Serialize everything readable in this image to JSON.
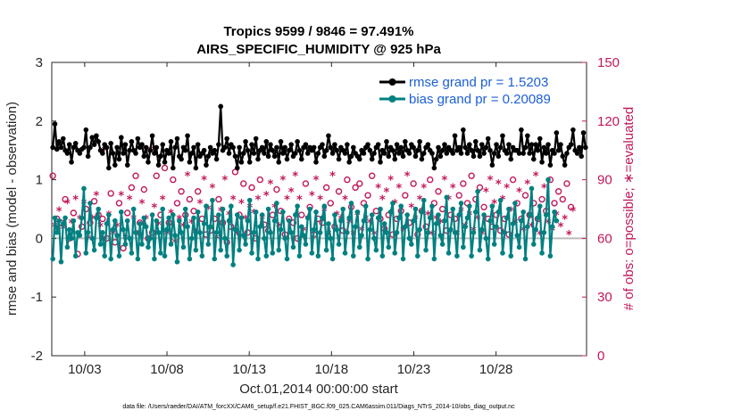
{
  "chart_data": {
    "type": "line",
    "title_line1": "Tropics 9599 / 9846 = 97.491%",
    "title_line2": "AIRS_SPECIFIC_HUMIDITY @ 925 hPa",
    "ylabel": "rmse and bias (model - observation)",
    "ylabel_right": "# of obs: o=possible; ∗=evaluated",
    "xlabel": "Oct.01,2014 00:00:00 start",
    "footer": "data file: /Users/raeder/DAI/ATM_forcXX/CAM6_setup/f.e21.FHIST_BGC.f09_025.CAM6assim.011/Diags_NTrS_2014-10/obs_diag_output.nc",
    "ylim": [
      -2,
      3
    ],
    "ylim_right": [
      0,
      150
    ],
    "xlim": [
      0,
      32.5
    ],
    "yticks": [
      "-2",
      "-1",
      "0",
      "1",
      "2",
      "3"
    ],
    "yticks_right": [
      "0",
      "30",
      "60",
      "90",
      "120",
      "150"
    ],
    "xticks": [
      {
        "day": 2,
        "label": "10/03"
      },
      {
        "day": 7,
        "label": "10/08"
      },
      {
        "day": 12,
        "label": "10/13"
      },
      {
        "day": 17,
        "label": "10/18"
      },
      {
        "day": 22,
        "label": "10/23"
      },
      {
        "day": 27,
        "label": "10/28"
      }
    ],
    "legend": {
      "placement": "top-right",
      "rmse_label": "rmse grand pr = 1.5203",
      "bias_label": "bias grand pr = 0.20089"
    },
    "series": [
      {
        "name": "rmse",
        "color": "#000000",
        "values": [
          1.55,
          1.95,
          1.52,
          1.65,
          1.55,
          1.7,
          1.5,
          1.45,
          1.6,
          1.3,
          1.55,
          1.62,
          1.5,
          1.45,
          1.52,
          1.55,
          1.85,
          1.4,
          1.55,
          1.72,
          1.6,
          1.75,
          1.65,
          1.5,
          1.45,
          1.6,
          1.55,
          1.2,
          1.62,
          1.45,
          1.25,
          1.55,
          1.35,
          1.72,
          1.45,
          1.6,
          1.25,
          1.5,
          1.65,
          1.5,
          1.45,
          1.7,
          1.55,
          1.6,
          1.4,
          1.55,
          1.3,
          1.5,
          1.75,
          1.45,
          1.55,
          1.25,
          1.4,
          1.6,
          1.3,
          1.5,
          1.45,
          1.65,
          1.2,
          1.55,
          1.7,
          1.4,
          1.35,
          1.55,
          1.5,
          1.75,
          1.3,
          1.45,
          1.55,
          1.2,
          1.6,
          1.4,
          1.45,
          1.5,
          1.25,
          1.4,
          1.55,
          1.45,
          1.5,
          1.35,
          1.6,
          2.25,
          1.5,
          1.55,
          1.7,
          1.45,
          1.6,
          1.55,
          1.4,
          1.2,
          1.55,
          1.3,
          1.45,
          1.65,
          1.5,
          1.3,
          1.6,
          1.45,
          1.7,
          1.35,
          1.5,
          1.55,
          1.45,
          1.65,
          1.4,
          1.6,
          1.5,
          1.4,
          1.55,
          1.3,
          1.65,
          1.45,
          1.55,
          1.35,
          1.5,
          1.6,
          1.4,
          1.45,
          1.65,
          1.5,
          1.35,
          1.55,
          1.6,
          1.45,
          1.55,
          1.5,
          1.55,
          1.3,
          1.45,
          1.55,
          1.6,
          1.4,
          1.5,
          1.75,
          1.55,
          1.45,
          1.6,
          1.5,
          1.35,
          1.55,
          1.5,
          1.45,
          1.6,
          1.3,
          1.4,
          1.55,
          1.45,
          1.4,
          1.35,
          1.5,
          1.45,
          1.55,
          1.6,
          1.5,
          1.35,
          1.45,
          1.55,
          1.6,
          1.3,
          1.5,
          1.45,
          1.65,
          1.4,
          1.55,
          1.5,
          1.35,
          1.6,
          1.45,
          1.55,
          1.4,
          1.65,
          1.5,
          1.45,
          1.6,
          1.55,
          1.4,
          1.5,
          1.65,
          1.35,
          1.45,
          1.55,
          1.6,
          1.5,
          1.45,
          1.2,
          1.35,
          1.55,
          1.4,
          1.5,
          1.6,
          1.45,
          1.55,
          1.5,
          1.45,
          1.75,
          1.5,
          1.55,
          1.45,
          1.85,
          1.55,
          1.45,
          1.6,
          1.5,
          1.4,
          1.65,
          1.5,
          1.4,
          1.6,
          1.45,
          1.55,
          1.7,
          1.5,
          1.25,
          1.45,
          1.6,
          1.4,
          1.55,
          1.75,
          1.5,
          1.45,
          1.6,
          1.35,
          1.55,
          1.5,
          1.5,
          1.45,
          1.85,
          1.45,
          1.55,
          1.75,
          1.45,
          1.6,
          1.35,
          1.6,
          1.5,
          1.7,
          1.3,
          1.55,
          1.45,
          1.6,
          1.25,
          1.5,
          1.45,
          1.8,
          1.5,
          1.6,
          1.4,
          1.25,
          1.45,
          1.55,
          1.6,
          1.85,
          1.5,
          1.45,
          1.55,
          1.4,
          1.8,
          1.55
        ]
      },
      {
        "name": "bias",
        "color": "#008080",
        "values": [
          -0.35,
          0.35,
          0.1,
          0.3,
          -0.4,
          0.25,
          0.35,
          -0.15,
          0.15,
          0.0,
          0.3,
          -0.3,
          0.1,
          0.05,
          0.35,
          0.85,
          -0.25,
          0.1,
          0.6,
          0.0,
          -0.2,
          0.35,
          0.5,
          -0.1,
          0.1,
          -0.3,
          0.25,
          0.4,
          -0.35,
          0.15,
          0.3,
          0.05,
          -0.3,
          0.45,
          0.15,
          -0.1,
          0.3,
          0.0,
          -0.25,
          0.5,
          0.1,
          -0.35,
          0.25,
          -0.1,
          0.35,
          0.2,
          -0.15,
          0.0,
          0.4,
          -0.35,
          0.3,
          0.1,
          -0.25,
          0.5,
          -0.3,
          0.15,
          0.35,
          -0.1,
          0.4,
          0.05,
          -0.4,
          0.3,
          0.1,
          -0.15,
          0.5,
          0.2,
          -0.35,
          0.0,
          0.35,
          -0.2,
          0.45,
          0.1,
          -0.3,
          0.25,
          0.55,
          -0.1,
          0.2,
          0.65,
          -0.35,
          0.1,
          0.4,
          -0.2,
          0.5,
          0.0,
          -0.3,
          0.3,
          0.55,
          -0.45,
          0.15,
          0.4,
          -0.2,
          0.35,
          0.05,
          -0.1,
          0.3,
          0.65,
          -0.25,
          0.1,
          0.45,
          -0.35,
          0.2,
          0.4,
          0.0,
          -0.3,
          0.5,
          0.1,
          -0.25,
          0.3,
          0.6,
          -0.2,
          0.15,
          0.45,
          0.0,
          -0.35,
          0.3,
          0.1,
          -0.15,
          0.4,
          0.55,
          -0.3,
          0.2,
          0.05,
          -0.1,
          0.35,
          0.5,
          -0.25,
          0.15,
          0.45,
          -0.3,
          0.1,
          0.35,
          0.55,
          -0.2,
          0.25,
          0.0,
          -0.35,
          0.4,
          0.15,
          -0.1,
          0.3,
          0.5,
          -0.25,
          0.1,
          0.35,
          0.6,
          -0.3,
          0.2,
          0.45,
          -0.15,
          0.05,
          0.3,
          0.55,
          -0.35,
          0.15,
          0.4,
          0.0,
          -0.2,
          0.35,
          0.5,
          -0.3,
          0.25,
          0.1,
          -0.15,
          0.45,
          0.6,
          -0.25,
          0.1,
          0.35,
          0.55,
          -0.35,
          0.2,
          0.4,
          0.0,
          -0.1,
          0.3,
          0.5,
          -0.3,
          0.15,
          0.45,
          0.65,
          -0.2,
          0.1,
          0.35,
          0.55,
          -0.35,
          0.25,
          0.4,
          0.05,
          -0.1,
          0.3,
          0.7,
          -0.25,
          0.15,
          0.5,
          0.1,
          -0.3,
          0.4,
          0.6,
          -0.15,
          0.2,
          0.35,
          0.55,
          -0.3,
          0.1,
          0.45,
          0.8,
          -0.2,
          0.15,
          0.4,
          0.0,
          -0.35,
          0.3,
          0.55,
          -0.1,
          0.2,
          0.45,
          0.65,
          -0.25,
          0.1,
          0.35,
          0.5,
          -0.3,
          0.25,
          0.6,
          0.05,
          -0.15,
          0.3,
          0.45,
          -0.35,
          0.2,
          0.4,
          0.85,
          -0.1,
          0.15,
          0.35,
          0.55,
          -0.25,
          0.1,
          0.4,
          1.0,
          -0.3,
          0.2,
          0.45,
          0.3
        ]
      },
      {
        "name": "# of obs possible",
        "color": "#c2185b",
        "marker": "o",
        "values": [
          92,
          66,
          70,
          74,
          68,
          65,
          80,
          78,
          60,
          68,
          73,
          80,
          52,
          70,
          66,
          78,
          75,
          60,
          68,
          70,
          79,
          82,
          72,
          66,
          70,
          105,
          60,
          72,
          83,
          62,
          58,
          66,
          78,
          82,
          55,
          60,
          73,
          80,
          86,
          70,
          92,
          62,
          68,
          78,
          85,
          70,
          60,
          105,
          63,
          76,
          92,
          67,
          72,
          80,
          96,
          62,
          68,
          73,
          90,
          58,
          78,
          70,
          84,
          66,
          72,
          92,
          80,
          68,
          74,
          63,
          84,
          78,
          70,
          90,
          62,
          75,
          64,
          86,
          70,
          60,
          80,
          74,
          68,
          90,
          58,
          72,
          66,
          80,
          94,
          62,
          72,
          78,
          88,
          70,
          63,
          76,
          86,
          73,
          60,
          80,
          90,
          70,
          67,
          82,
          64,
          88,
          72,
          76,
          85,
          66,
          74,
          90,
          62,
          80,
          70,
          84,
          68,
          92,
          60,
          80,
          72,
          64,
          88,
          70,
          76,
          82,
          62,
          90,
          70,
          80,
          68,
          74,
          86,
          62,
          78,
          92,
          66,
          72,
          84,
          70,
          64,
          80,
          90,
          68,
          76,
          62,
          86,
          72,
          88,
          64,
          78,
          70,
          82,
          68,
          92,
          62,
          74,
          86,
          70,
          80,
          65,
          84,
          72,
          90,
          62,
          78,
          70,
          86,
          74,
          64,
          82,
          92,
          68,
          76,
          88,
          70,
          62,
          80,
          74,
          86,
          66,
          72,
          90,
          62,
          78,
          70,
          84,
          68,
          75,
          90,
          64,
          80,
          72,
          86,
          70,
          62,
          82,
          74,
          88,
          66,
          78,
          72,
          92,
          64,
          80,
          70,
          86,
          62,
          76,
          84,
          70,
          90,
          66,
          78,
          72,
          88,
          64,
          80,
          70,
          86,
          62,
          74,
          90,
          68,
          78,
          84,
          70,
          64,
          82,
          88,
          72,
          66,
          78,
          92,
          70,
          62,
          80,
          86,
          74,
          68,
          90,
          64,
          78,
          72,
          84,
          66,
          80,
          70,
          88,
          62,
          76,
          74
        ]
      }
    ]
  }
}
